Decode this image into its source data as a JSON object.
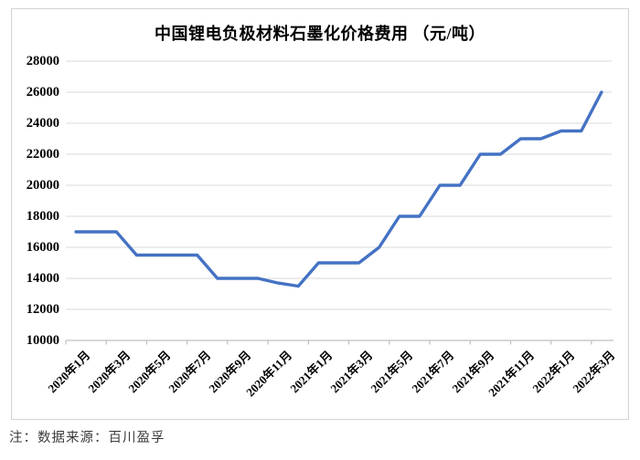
{
  "chart_data": {
    "type": "line",
    "title": "中国锂电负极材料石墨化价格费用 （元/吨）",
    "x": [
      "2020年1月",
      "2020年2月",
      "2020年3月",
      "2020年4月",
      "2020年5月",
      "2020年6月",
      "2020年7月",
      "2020年8月",
      "2020年9月",
      "2020年10月",
      "2020年11月",
      "2020年12月",
      "2021年1月",
      "2021年2月",
      "2021年3月",
      "2021年4月",
      "2021年5月",
      "2021年6月",
      "2021年7月",
      "2021年8月",
      "2021年9月",
      "2021年10月",
      "2021年11月",
      "2021年12月",
      "2022年1月",
      "2022年2月",
      "2022年3月"
    ],
    "values": [
      17000,
      17000,
      17000,
      15500,
      15500,
      15500,
      15500,
      14000,
      14000,
      14000,
      13700,
      13500,
      15000,
      15000,
      15000,
      16000,
      18000,
      18000,
      20000,
      20000,
      22000,
      22000,
      23000,
      23000,
      23500,
      23500,
      26000
    ],
    "ylim": [
      10000,
      28000
    ],
    "yticks": [
      10000,
      12000,
      14000,
      16000,
      18000,
      20000,
      22000,
      24000,
      26000,
      28000
    ],
    "xtick_labels_shown": [
      "2020年1月",
      "2020年3月",
      "2020年5月",
      "2020年7月",
      "2020年9月",
      "2020年11月",
      "2021年1月",
      "2021年3月",
      "2021年5月",
      "2021年7月",
      "2021年9月",
      "2021年11月",
      "2022年1月",
      "2022年3月"
    ],
    "grid": true,
    "legend": "none",
    "xlabel": "",
    "ylabel": ""
  },
  "colors": {
    "line": "#4472C4",
    "gridline": "#D9D9D9",
    "axis": "#BFBFBF",
    "text": "#000000"
  },
  "footer": {
    "note": "注：数据来源：百川盈孚"
  }
}
